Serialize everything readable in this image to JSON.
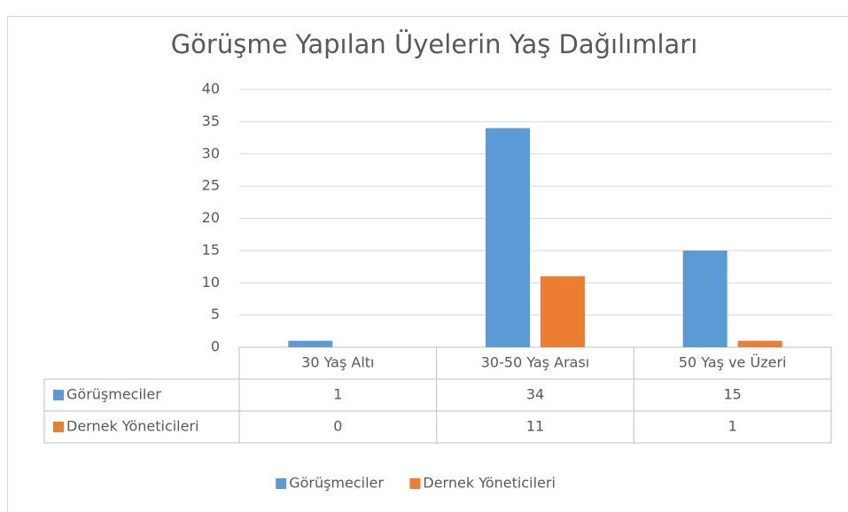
{
  "chart_data": {
    "type": "bar",
    "title": "Görüşme Yapılan Üyelerin Yaş Dağılımları",
    "categories": [
      "30 Yaş Altı",
      "30-50 Yaş Arası",
      "50 Yaş ve Üzeri"
    ],
    "series": [
      {
        "name": "Görüşmeciler",
        "color": "#5b9bd5",
        "values": [
          1,
          34,
          15
        ]
      },
      {
        "name": "Dernek Yöneticileri",
        "color": "#ed7d31",
        "values": [
          0,
          11,
          1
        ]
      }
    ],
    "ylim": [
      0,
      40
    ],
    "yticks": [
      0,
      5,
      10,
      15,
      20,
      25,
      30,
      35,
      40
    ],
    "grid": true,
    "data_table": true,
    "legend": "bottom"
  }
}
